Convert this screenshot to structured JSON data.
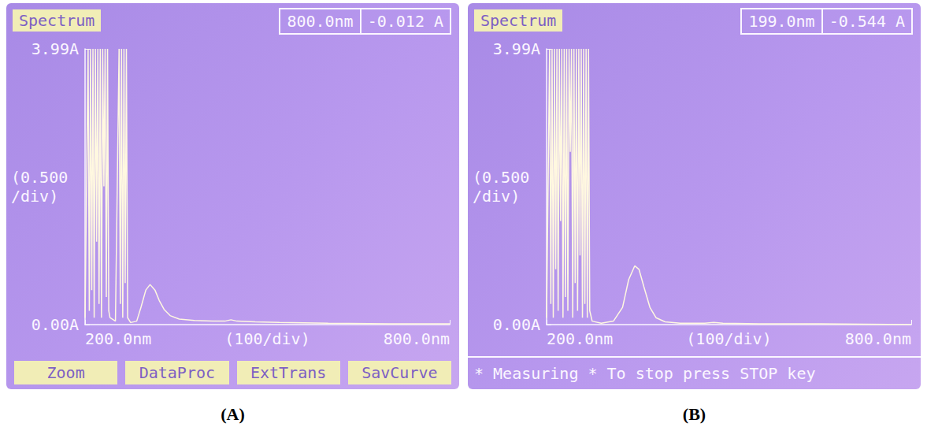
{
  "chart_data": [
    {
      "type": "line",
      "title": "Spectrum",
      "xlabel": "(100/div)",
      "ylabel": "(0.500 /div)",
      "annotations": {
        "panel": "(A)",
        "readout": [
          "800.0nm",
          "-0.012 A"
        ],
        "buttons": [
          "Zoom",
          "DataProc",
          "ExtTrans",
          "SavCurve"
        ]
      },
      "xlim": [
        200,
        800
      ],
      "xticks": [
        {
          "value": 200,
          "label": "200.0nm"
        },
        {
          "value": 800,
          "label": "800.0nm"
        }
      ],
      "ylim": [
        0,
        3.99
      ],
      "yticks": [
        {
          "value": 0,
          "label": "0.00A"
        },
        {
          "value": 3.99,
          "label": "3.99A"
        }
      ],
      "grid": false,
      "color": "#fff8e0",
      "x": [
        200,
        205,
        207,
        209,
        211,
        213,
        215,
        217,
        219,
        221,
        223,
        225,
        227,
        229,
        231,
        233,
        235,
        237,
        239,
        241,
        250,
        256,
        258,
        260,
        262,
        264,
        266,
        268,
        270,
        275,
        285,
        292,
        300,
        307,
        315,
        322,
        330,
        340,
        355,
        380,
        410,
        430,
        440,
        450,
        480,
        520,
        600,
        700,
        800
      ],
      "values": [
        0.1,
        3.99,
        0.2,
        3.99,
        0.5,
        3.99,
        0.1,
        3.99,
        1.2,
        3.99,
        0.3,
        3.99,
        0.1,
        3.99,
        2.0,
        3.99,
        0.4,
        3.99,
        0.2,
        0.1,
        0.05,
        3.99,
        0.3,
        3.99,
        0.1,
        3.99,
        0.6,
        3.99,
        0.1,
        0.03,
        0.05,
        0.25,
        0.5,
        0.58,
        0.5,
        0.35,
        0.22,
        0.13,
        0.08,
        0.06,
        0.05,
        0.05,
        0.07,
        0.05,
        0.04,
        0.03,
        0.02,
        0.01,
        0.01
      ]
    },
    {
      "type": "line",
      "title": "Spectrum",
      "xlabel": "(100/div)",
      "ylabel": "(0.500 /div)",
      "annotations": {
        "panel": "(B)",
        "readout": [
          "199.0nm",
          "-0.544 A"
        ],
        "status": "* Measuring * To stop press STOP key"
      },
      "xlim": [
        200,
        800
      ],
      "xticks": [
        {
          "value": 200,
          "label": "200.0nm"
        },
        {
          "value": 800,
          "label": "800.0nm"
        }
      ],
      "ylim": [
        0,
        3.99
      ],
      "yticks": [
        {
          "value": 0,
          "label": "0.00A"
        },
        {
          "value": 3.99,
          "label": "3.99A"
        }
      ],
      "grid": false,
      "color": "#fff8e0",
      "x": [
        200,
        205,
        207,
        209,
        211,
        213,
        215,
        217,
        219,
        221,
        223,
        225,
        227,
        229,
        231,
        233,
        235,
        237,
        239,
        241,
        243,
        245,
        247,
        249,
        251,
        253,
        255,
        257,
        259,
        261,
        263,
        265,
        267,
        269,
        271,
        275,
        290,
        310,
        325,
        335,
        345,
        352,
        360,
        370,
        380,
        395,
        420,
        460,
        475,
        490,
        550,
        650,
        800
      ],
      "values": [
        0.1,
        3.99,
        0.3,
        3.99,
        0.1,
        3.99,
        0.8,
        3.99,
        0.2,
        3.99,
        1.5,
        3.99,
        0.1,
        3.99,
        0.4,
        3.99,
        0.2,
        3.99,
        2.5,
        3.99,
        0.1,
        3.99,
        0.6,
        3.99,
        0.2,
        3.99,
        1.0,
        3.99,
        0.1,
        3.99,
        0.3,
        3.99,
        0.1,
        3.99,
        0.2,
        0.05,
        0.02,
        0.05,
        0.25,
        0.65,
        0.85,
        0.8,
        0.55,
        0.25,
        0.1,
        0.04,
        0.02,
        0.02,
        0.03,
        0.02,
        0.01,
        0.01,
        0.0
      ]
    }
  ]
}
